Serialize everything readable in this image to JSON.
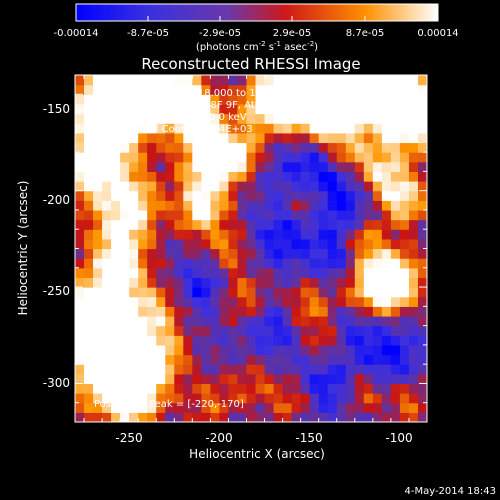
{
  "chart_data": {
    "type": "heatmap",
    "title": "Reconstructed RHESSI Image",
    "xlabel": "Heliocentric X (arcsec)",
    "ylabel": "Heliocentric Y (arcsec)",
    "xlim": [
      -280,
      -85
    ],
    "ylim": [
      -320,
      -140
    ],
    "x_ticks": [
      -250,
      -200,
      -150,
      -100
    ],
    "y_ticks": [
      -300,
      -250,
      -200,
      -150
    ],
    "colorbar": {
      "min": -0.00014,
      "max": 0.00014,
      "tick_labels": [
        "-0.00014",
        "-8.7e-05",
        "-2.9e-05",
        "2.9e-05",
        "8.7e-05",
        "0.00014"
      ],
      "unit_prefix": "(photons cm",
      "unit_exp1": "-2",
      "unit_mid": " s",
      "unit_exp2": "-1",
      "unit_mid2": " asec",
      "unit_exp3": "-2",
      "unit_suffix": ")",
      "colors": [
        "#0000ff",
        "#4a30d0",
        "#7a3a90",
        "#ff1010",
        "#ffa000",
        "#ffffff"
      ]
    },
    "annotations": [
      "3-May-2012 12:01:18.000 to 12:06:00.000",
      "Detectors: 3F 5F 6F 7F 8F 9F, Att 0",
      "Energy Range: 25.0 - 50.0 keV",
      "Clean    Total Counts: 5.84E+03"
    ],
    "peak_label": "Position of Peak = [-220,-170]",
    "peak": [
      -220,
      -170
    ],
    "grid": false
  },
  "footer": {
    "timestamp": "4-May-2014 18:43"
  }
}
